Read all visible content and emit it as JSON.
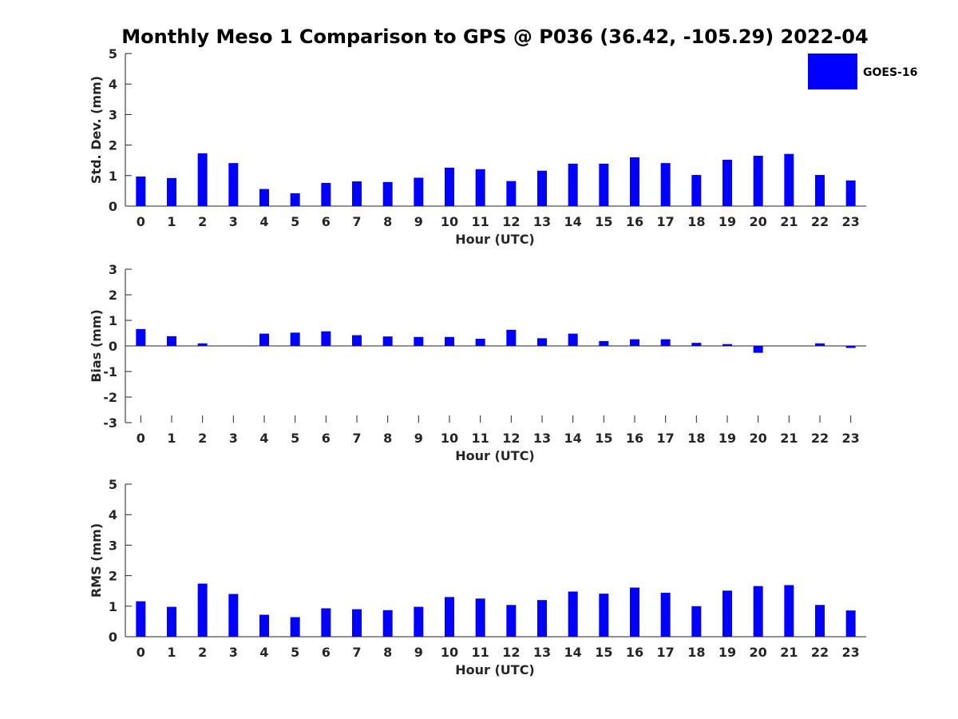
{
  "title": "Monthly Meso 1 Comparison to GPS @ P036 (36.42, -105.29) 2022-04",
  "legend": {
    "label": "GOES-16",
    "color": "#0000ff",
    "placement": "top-right"
  },
  "chart_data": [
    {
      "type": "bar",
      "name": "std_dev",
      "xlabel": "Hour (UTC)",
      "ylabel": "Std. Dev. (mm)",
      "ylim": [
        0,
        5
      ],
      "yticks": [
        0,
        1,
        2,
        3,
        4,
        5
      ],
      "categories": [
        "0",
        "1",
        "2",
        "3",
        "4",
        "5",
        "6",
        "7",
        "8",
        "9",
        "10",
        "11",
        "12",
        "13",
        "14",
        "15",
        "16",
        "17",
        "18",
        "19",
        "20",
        "21",
        "22",
        "23"
      ],
      "series": [
        {
          "name": "GOES-16",
          "color": "#0000ff",
          "values": [
            0.97,
            0.92,
            1.73,
            1.41,
            0.56,
            0.42,
            0.76,
            0.81,
            0.79,
            0.93,
            1.26,
            1.21,
            0.82,
            1.16,
            1.39,
            1.39,
            1.6,
            1.41,
            1.02,
            1.52,
            1.65,
            1.71,
            1.02,
            0.84
          ]
        }
      ]
    },
    {
      "type": "bar",
      "name": "bias",
      "xlabel": "Hour (UTC)",
      "ylabel": "Bias (mm)",
      "ylim": [
        -3,
        3
      ],
      "yticks": [
        -3,
        -2,
        -1,
        0,
        1,
        2,
        3
      ],
      "categories": [
        "0",
        "1",
        "2",
        "3",
        "4",
        "5",
        "6",
        "7",
        "8",
        "9",
        "10",
        "11",
        "12",
        "13",
        "14",
        "15",
        "16",
        "17",
        "18",
        "19",
        "20",
        "21",
        "22",
        "23"
      ],
      "series": [
        {
          "name": "GOES-16",
          "color": "#0000ff",
          "values": [
            0.66,
            0.38,
            0.1,
            0.0,
            0.48,
            0.52,
            0.57,
            0.42,
            0.37,
            0.35,
            0.35,
            0.28,
            0.63,
            0.3,
            0.48,
            0.19,
            0.26,
            0.26,
            0.12,
            0.07,
            -0.27,
            0.0,
            0.1,
            -0.08
          ]
        }
      ]
    },
    {
      "type": "bar",
      "name": "rms",
      "xlabel": "Hour (UTC)",
      "ylabel": "RMS (mm)",
      "ylim": [
        0,
        5
      ],
      "yticks": [
        0,
        1,
        2,
        3,
        4,
        5
      ],
      "categories": [
        "0",
        "1",
        "2",
        "3",
        "4",
        "5",
        "6",
        "7",
        "8",
        "9",
        "10",
        "11",
        "12",
        "13",
        "14",
        "15",
        "16",
        "17",
        "18",
        "19",
        "20",
        "21",
        "22",
        "23"
      ],
      "series": [
        {
          "name": "GOES-16",
          "color": "#0000ff",
          "values": [
            1.16,
            0.98,
            1.74,
            1.4,
            0.72,
            0.64,
            0.93,
            0.9,
            0.87,
            0.98,
            1.3,
            1.25,
            1.04,
            1.2,
            1.48,
            1.41,
            1.61,
            1.44,
            1.0,
            1.51,
            1.66,
            1.69,
            1.04,
            0.86
          ]
        }
      ]
    }
  ]
}
